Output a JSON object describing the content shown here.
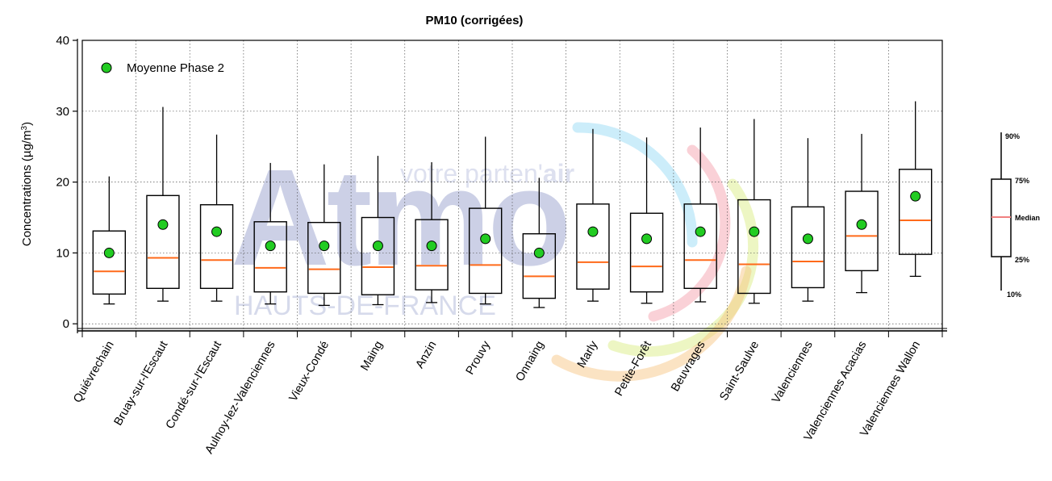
{
  "chart_data": {
    "type": "boxplot",
    "title": "PM10 (corrigées)",
    "ylabel": "Concentrations (µg/m",
    "ylabel_sup": "3",
    "ylabel_end": ")",
    "ylim": [
      -1,
      40
    ],
    "yticks": [
      0,
      10,
      20,
      30,
      40
    ],
    "grid": true,
    "legend": {
      "label": "Moyenne Phase 2",
      "placement": "top-left",
      "marker_color": "#22cc22"
    },
    "box_color": "#000000",
    "median_color": "#ff6a1a",
    "categories": [
      "Quiévrechain",
      "Bruay-sur-l'Escaut",
      "Condé-sur-l'Escaut",
      "Aulnoy-lez-Valenciennes",
      "Vieux-Condé",
      "Maing",
      "Anzin",
      "Prouvy",
      "Onnaing",
      "Marly",
      "Petite-Forêt",
      "Beuvrages",
      "Saint-Saulve",
      "Valenciennes",
      "Valenciennes Acacias",
      "Valenciennes Wallon"
    ],
    "series": [
      {
        "p10": 2.8,
        "p25": 4.2,
        "median": 7.4,
        "p75": 13.1,
        "p90": 20.8,
        "mean": 10
      },
      {
        "p10": 3.2,
        "p25": 5.0,
        "median": 9.3,
        "p75": 18.1,
        "p90": 30.6,
        "mean": 14
      },
      {
        "p10": 3.2,
        "p25": 5.0,
        "median": 9.0,
        "p75": 16.8,
        "p90": 26.7,
        "mean": 13
      },
      {
        "p10": 2.8,
        "p25": 4.5,
        "median": 7.9,
        "p75": 14.4,
        "p90": 22.7,
        "mean": 11
      },
      {
        "p10": 2.6,
        "p25": 4.3,
        "median": 7.7,
        "p75": 14.3,
        "p90": 22.5,
        "mean": 11
      },
      {
        "p10": 2.7,
        "p25": 4.1,
        "median": 8.0,
        "p75": 15.0,
        "p90": 23.7,
        "mean": 11
      },
      {
        "p10": 3.0,
        "p25": 4.8,
        "median": 8.2,
        "p75": 14.7,
        "p90": 22.8,
        "mean": 11
      },
      {
        "p10": 2.8,
        "p25": 4.3,
        "median": 8.3,
        "p75": 16.3,
        "p90": 26.4,
        "mean": 12
      },
      {
        "p10": 2.3,
        "p25": 3.6,
        "median": 6.7,
        "p75": 12.7,
        "p90": 20.6,
        "mean": 10
      },
      {
        "p10": 3.2,
        "p25": 4.9,
        "median": 8.7,
        "p75": 16.9,
        "p90": 27.5,
        "mean": 13
      },
      {
        "p10": 2.9,
        "p25": 4.5,
        "median": 8.1,
        "p75": 15.6,
        "p90": 26.3,
        "mean": 12
      },
      {
        "p10": 3.1,
        "p25": 5.0,
        "median": 9.0,
        "p75": 16.9,
        "p90": 27.7,
        "mean": 13
      },
      {
        "p10": 2.9,
        "p25": 4.3,
        "median": 8.4,
        "p75": 17.5,
        "p90": 28.9,
        "mean": 13
      },
      {
        "p10": 3.2,
        "p25": 5.1,
        "median": 8.8,
        "p75": 16.5,
        "p90": 26.2,
        "mean": 12
      },
      {
        "p10": 4.4,
        "p25": 7.5,
        "median": 12.4,
        "p75": 18.7,
        "p90": 26.8,
        "mean": 14
      },
      {
        "p10": 6.7,
        "p25": 9.8,
        "median": 14.6,
        "p75": 21.8,
        "p90": 31.4,
        "mean": 18
      }
    ]
  },
  "key": {
    "labels": [
      "90%",
      "75%",
      "Median",
      "25%",
      "10%"
    ],
    "median_color": "#f08080"
  },
  "watermark": {
    "brand": "Atmo",
    "tagline_prefix": "votre parten'",
    "tagline_suffix": "air",
    "region": "HAUTS-DE-FRANCE"
  }
}
